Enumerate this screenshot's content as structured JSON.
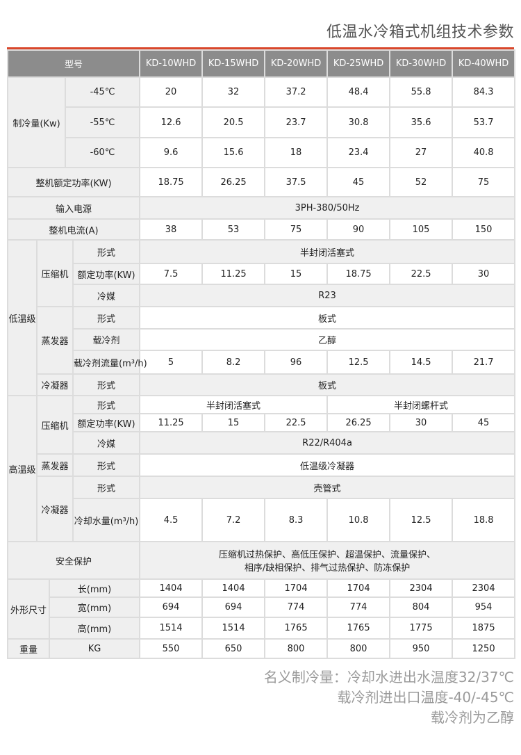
{
  "title": "低温水冷箱式机组技术参数",
  "colors": {
    "accent": "#d9472b",
    "header_bg": "#8c8c8c",
    "label_bg": "#efefef"
  },
  "header": {
    "label": "型号",
    "models": [
      "KD-10WHD",
      "KD-15WHD",
      "KD-20WHD",
      "KD-25WHD",
      "KD-30WHD",
      "KD-40WHD"
    ]
  },
  "cooling": {
    "label": "制冷量(Kw)",
    "rows": [
      {
        "temp": "-45℃",
        "values": [
          "20",
          "32",
          "37.2",
          "48.4",
          "55.8",
          "84.3"
        ]
      },
      {
        "temp": "-55℃",
        "values": [
          "12.6",
          "20.5",
          "23.7",
          "30.8",
          "35.6",
          "53.7"
        ]
      },
      {
        "temp": "-60℃",
        "values": [
          "9.6",
          "15.6",
          "18",
          "23.4",
          "27",
          "40.8"
        ]
      }
    ]
  },
  "rated_power": {
    "label": "整机额定功率(KW)",
    "values": [
      "18.75",
      "26.25",
      "37.5",
      "45",
      "52",
      "75"
    ]
  },
  "power_supply": {
    "label": "输入电源",
    "value": "3PH-380/50Hz"
  },
  "current": {
    "label": "整机电流(A)",
    "values": [
      "38",
      "53",
      "75",
      "90",
      "105",
      "150"
    ]
  },
  "low_stage": {
    "label": "低温级",
    "compressor": {
      "label": "压缩机",
      "type_label": "形式",
      "type": "半封闭活塞式",
      "power_label": "额定功率(KW)",
      "power": [
        "7.5",
        "11.25",
        "15",
        "18.75",
        "22.5",
        "30"
      ],
      "refrigerant_label": "冷媒",
      "refrigerant": "R23"
    },
    "evaporator": {
      "label": "蒸发器",
      "type_label": "形式",
      "type": "板式",
      "coolant_label": "载冷剂",
      "coolant": "乙醇",
      "flow_label": "载冷剂流量(m³/h)",
      "flow": [
        "5",
        "8.2",
        "96",
        "12.5",
        "14.5",
        "21.7"
      ]
    },
    "condenser": {
      "label": "冷凝器",
      "type_label": "形式",
      "type": "板式"
    }
  },
  "high_stage": {
    "label": "高温级",
    "compressor": {
      "label": "压缩机",
      "type_label": "形式",
      "type_a": "半封闭活塞式",
      "type_b": "半封闭螺杆式",
      "power_label": "额定功率(KW)",
      "power": [
        "11.25",
        "15",
        "22.5",
        "26.25",
        "30",
        "45"
      ],
      "refrigerant_label": "冷媒",
      "refrigerant": "R22/R404a"
    },
    "evaporator": {
      "label": "蒸发器",
      "type_label": "形式",
      "type": "低温级冷凝器"
    },
    "condenser": {
      "label": "冷凝器",
      "type_label": "形式",
      "type": "壳管式",
      "water_label": "冷却水量(m³/h)",
      "water": [
        "4.5",
        "7.2",
        "8.3",
        "10.8",
        "12.5",
        "18.8"
      ]
    }
  },
  "safety": {
    "label": "安全保护",
    "line1": "压缩机过热保护、高低压保护、超温保护、流量保护、",
    "line2": "相序/缺相保护、排气过热保护、防冻保护"
  },
  "dimensions": {
    "label": "外形尺寸",
    "rows": [
      {
        "label": "长(mm)",
        "values": [
          "1404",
          "1404",
          "1704",
          "1704",
          "2304",
          "2304"
        ]
      },
      {
        "label": "宽(mm)",
        "values": [
          "694",
          "694",
          "774",
          "774",
          "804",
          "954"
        ]
      },
      {
        "label": "高(mm)",
        "values": [
          "1514",
          "1514",
          "1765",
          "1765",
          "1775",
          "1875"
        ]
      }
    ]
  },
  "weight": {
    "label": "重量",
    "unit": "KG",
    "values": [
      "550",
      "650",
      "800",
      "800",
      "950",
      "1250"
    ]
  },
  "notes": [
    "名义制冷量：冷却水进出水温度32/37℃",
    "载冷剂进出口温度-40/-45℃",
    "载冷剂为乙醇"
  ]
}
